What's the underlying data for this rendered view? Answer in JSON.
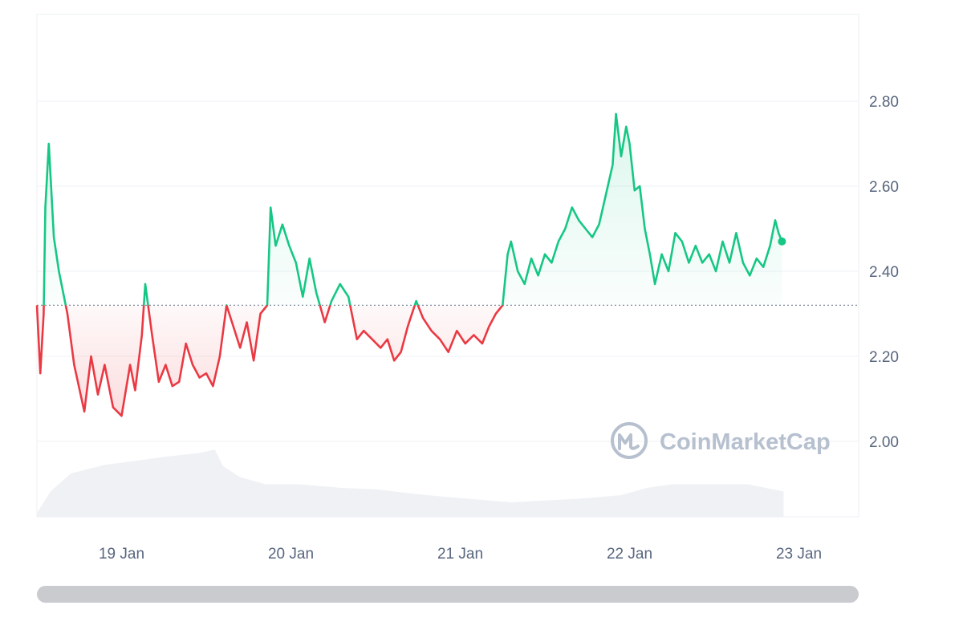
{
  "chart_data": {
    "type": "line",
    "title": "",
    "xlabel": "",
    "ylabel": "",
    "ylim": [
      1.82,
      3.0
    ],
    "x_ticks": [
      {
        "label": "19 Jan",
        "day": 0.5
      },
      {
        "label": "20 Jan",
        "day": 1.5
      },
      {
        "label": "21 Jan",
        "day": 2.5
      },
      {
        "label": "22 Jan",
        "day": 3.5
      },
      {
        "label": "23 Jan",
        "day": 4.5
      }
    ],
    "y_ticks": [
      {
        "label": "2.80",
        "value": 2.8
      },
      {
        "label": "2.60",
        "value": 2.6
      },
      {
        "label": "2.40",
        "value": 2.4
      },
      {
        "label": "2.20",
        "value": 2.2
      },
      {
        "label": "2.00",
        "value": 2.0
      }
    ],
    "baseline": 2.32,
    "grid": true,
    "colors": {
      "above": "#16c784",
      "below": "#ea3943",
      "volume": "#eff1f4",
      "grid": "#eff2f5",
      "baseline": "#7f8a9c"
    },
    "series": [
      {
        "values": [
          {
            "x": 0.0,
            "y": 2.32
          },
          {
            "x": 0.02,
            "y": 2.16
          },
          {
            "x": 0.04,
            "y": 2.3
          },
          {
            "x": 0.05,
            "y": 2.55
          },
          {
            "x": 0.07,
            "y": 2.7
          },
          {
            "x": 0.1,
            "y": 2.48
          },
          {
            "x": 0.13,
            "y": 2.4
          },
          {
            "x": 0.18,
            "y": 2.3
          },
          {
            "x": 0.22,
            "y": 2.18
          },
          {
            "x": 0.28,
            "y": 2.07
          },
          {
            "x": 0.32,
            "y": 2.2
          },
          {
            "x": 0.36,
            "y": 2.11
          },
          {
            "x": 0.4,
            "y": 2.18
          },
          {
            "x": 0.45,
            "y": 2.08
          },
          {
            "x": 0.5,
            "y": 2.06
          },
          {
            "x": 0.55,
            "y": 2.18
          },
          {
            "x": 0.58,
            "y": 2.12
          },
          {
            "x": 0.62,
            "y": 2.25
          },
          {
            "x": 0.64,
            "y": 2.37
          },
          {
            "x": 0.68,
            "y": 2.25
          },
          {
            "x": 0.72,
            "y": 2.14
          },
          {
            "x": 0.76,
            "y": 2.18
          },
          {
            "x": 0.8,
            "y": 2.13
          },
          {
            "x": 0.84,
            "y": 2.14
          },
          {
            "x": 0.88,
            "y": 2.23
          },
          {
            "x": 0.92,
            "y": 2.18
          },
          {
            "x": 0.96,
            "y": 2.15
          },
          {
            "x": 1.0,
            "y": 2.16
          },
          {
            "x": 1.04,
            "y": 2.13
          },
          {
            "x": 1.08,
            "y": 2.2
          },
          {
            "x": 1.12,
            "y": 2.32
          },
          {
            "x": 1.16,
            "y": 2.27
          },
          {
            "x": 1.2,
            "y": 2.22
          },
          {
            "x": 1.24,
            "y": 2.28
          },
          {
            "x": 1.28,
            "y": 2.19
          },
          {
            "x": 1.32,
            "y": 2.3
          },
          {
            "x": 1.36,
            "y": 2.32
          },
          {
            "x": 1.38,
            "y": 2.55
          },
          {
            "x": 1.41,
            "y": 2.46
          },
          {
            "x": 1.45,
            "y": 2.51
          },
          {
            "x": 1.49,
            "y": 2.46
          },
          {
            "x": 1.53,
            "y": 2.42
          },
          {
            "x": 1.57,
            "y": 2.34
          },
          {
            "x": 1.61,
            "y": 2.43
          },
          {
            "x": 1.65,
            "y": 2.35
          },
          {
            "x": 1.7,
            "y": 2.28
          },
          {
            "x": 1.74,
            "y": 2.33
          },
          {
            "x": 1.79,
            "y": 2.37
          },
          {
            "x": 1.84,
            "y": 2.34
          },
          {
            "x": 1.89,
            "y": 2.24
          },
          {
            "x": 1.93,
            "y": 2.26
          },
          {
            "x": 1.98,
            "y": 2.24
          },
          {
            "x": 2.03,
            "y": 2.22
          },
          {
            "x": 2.07,
            "y": 2.24
          },
          {
            "x": 2.11,
            "y": 2.19
          },
          {
            "x": 2.15,
            "y": 2.21
          },
          {
            "x": 2.19,
            "y": 2.27
          },
          {
            "x": 2.24,
            "y": 2.33
          },
          {
            "x": 2.28,
            "y": 2.29
          },
          {
            "x": 2.33,
            "y": 2.26
          },
          {
            "x": 2.38,
            "y": 2.24
          },
          {
            "x": 2.43,
            "y": 2.21
          },
          {
            "x": 2.48,
            "y": 2.26
          },
          {
            "x": 2.53,
            "y": 2.23
          },
          {
            "x": 2.58,
            "y": 2.25
          },
          {
            "x": 2.63,
            "y": 2.23
          },
          {
            "x": 2.67,
            "y": 2.27
          },
          {
            "x": 2.71,
            "y": 2.3
          },
          {
            "x": 2.75,
            "y": 2.32
          },
          {
            "x": 2.78,
            "y": 2.44
          },
          {
            "x": 2.8,
            "y": 2.47
          },
          {
            "x": 2.84,
            "y": 2.4
          },
          {
            "x": 2.88,
            "y": 2.37
          },
          {
            "x": 2.92,
            "y": 2.43
          },
          {
            "x": 2.96,
            "y": 2.39
          },
          {
            "x": 3.0,
            "y": 2.44
          },
          {
            "x": 3.04,
            "y": 2.42
          },
          {
            "x": 3.08,
            "y": 2.47
          },
          {
            "x": 3.12,
            "y": 2.5
          },
          {
            "x": 3.16,
            "y": 2.55
          },
          {
            "x": 3.2,
            "y": 2.52
          },
          {
            "x": 3.24,
            "y": 2.5
          },
          {
            "x": 3.28,
            "y": 2.48
          },
          {
            "x": 3.32,
            "y": 2.51
          },
          {
            "x": 3.36,
            "y": 2.58
          },
          {
            "x": 3.4,
            "y": 2.65
          },
          {
            "x": 3.42,
            "y": 2.77
          },
          {
            "x": 3.45,
            "y": 2.67
          },
          {
            "x": 3.48,
            "y": 2.74
          },
          {
            "x": 3.5,
            "y": 2.7
          },
          {
            "x": 3.53,
            "y": 2.59
          },
          {
            "x": 3.56,
            "y": 2.6
          },
          {
            "x": 3.59,
            "y": 2.5
          },
          {
            "x": 3.62,
            "y": 2.44
          },
          {
            "x": 3.65,
            "y": 2.37
          },
          {
            "x": 3.69,
            "y": 2.44
          },
          {
            "x": 3.73,
            "y": 2.4
          },
          {
            "x": 3.77,
            "y": 2.49
          },
          {
            "x": 3.81,
            "y": 2.47
          },
          {
            "x": 3.85,
            "y": 2.42
          },
          {
            "x": 3.89,
            "y": 2.46
          },
          {
            "x": 3.93,
            "y": 2.42
          },
          {
            "x": 3.97,
            "y": 2.44
          },
          {
            "x": 4.01,
            "y": 2.4
          },
          {
            "x": 4.05,
            "y": 2.47
          },
          {
            "x": 4.09,
            "y": 2.42
          },
          {
            "x": 4.13,
            "y": 2.49
          },
          {
            "x": 4.17,
            "y": 2.42
          },
          {
            "x": 4.21,
            "y": 2.39
          },
          {
            "x": 4.25,
            "y": 2.43
          },
          {
            "x": 4.29,
            "y": 2.41
          },
          {
            "x": 4.33,
            "y": 2.46
          },
          {
            "x": 4.36,
            "y": 2.52
          },
          {
            "x": 4.38,
            "y": 2.49
          },
          {
            "x": 4.4,
            "y": 2.47
          }
        ]
      }
    ],
    "volume": [
      {
        "x": 0.0,
        "v": 0.05
      },
      {
        "x": 0.08,
        "v": 0.35
      },
      {
        "x": 0.2,
        "v": 0.6
      },
      {
        "x": 0.4,
        "v": 0.72
      },
      {
        "x": 0.6,
        "v": 0.78
      },
      {
        "x": 0.75,
        "v": 0.83
      },
      {
        "x": 0.95,
        "v": 0.88
      },
      {
        "x": 1.05,
        "v": 0.93
      },
      {
        "x": 1.1,
        "v": 0.7
      },
      {
        "x": 1.2,
        "v": 0.55
      },
      {
        "x": 1.35,
        "v": 0.45
      },
      {
        "x": 1.55,
        "v": 0.45
      },
      {
        "x": 1.8,
        "v": 0.4
      },
      {
        "x": 2.0,
        "v": 0.38
      },
      {
        "x": 2.3,
        "v": 0.3
      },
      {
        "x": 2.55,
        "v": 0.25
      },
      {
        "x": 2.8,
        "v": 0.2
      },
      {
        "x": 2.95,
        "v": 0.22
      },
      {
        "x": 3.2,
        "v": 0.25
      },
      {
        "x": 3.45,
        "v": 0.3
      },
      {
        "x": 3.6,
        "v": 0.4
      },
      {
        "x": 3.75,
        "v": 0.45
      },
      {
        "x": 4.0,
        "v": 0.45
      },
      {
        "x": 4.2,
        "v": 0.45
      },
      {
        "x": 4.41,
        "v": 0.35
      }
    ],
    "watermark": "CoinMarketCap"
  }
}
